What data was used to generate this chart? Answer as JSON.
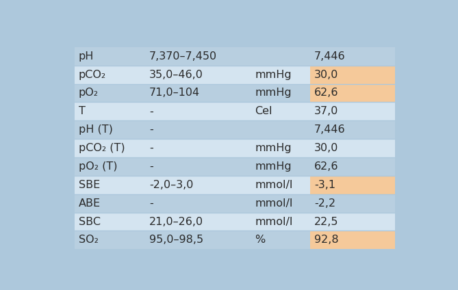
{
  "rows": [
    {
      "param": "pH",
      "ref": "7,370–7,450",
      "unit": "",
      "value": "7,446",
      "row_bg": "#b8cfe0",
      "val_bg": "#b8cfe0"
    },
    {
      "param": "pCO₂",
      "ref": "35,0–46,0",
      "unit": "mmHg",
      "value": "30,0",
      "row_bg": "#d4e4f0",
      "val_bg": "#f5c99a"
    },
    {
      "param": "pO₂",
      "ref": "71,0–104",
      "unit": "mmHg",
      "value": "62,6",
      "row_bg": "#b8cfe0",
      "val_bg": "#f5c99a"
    },
    {
      "param": "T",
      "ref": "-",
      "unit": "Cel",
      "value": "37,0",
      "row_bg": "#d4e4f0",
      "val_bg": "#d4e4f0"
    },
    {
      "param": "pH (T)",
      "ref": "-",
      "unit": "",
      "value": "7,446",
      "row_bg": "#b8cfe0",
      "val_bg": "#b8cfe0"
    },
    {
      "param": "pCO₂ (T)",
      "ref": "-",
      "unit": "mmHg",
      "value": "30,0",
      "row_bg": "#d4e4f0",
      "val_bg": "#d4e4f0"
    },
    {
      "param": "pO₂ (T)",
      "ref": "-",
      "unit": "mmHg",
      "value": "62,6",
      "row_bg": "#b8cfe0",
      "val_bg": "#b8cfe0"
    },
    {
      "param": "SBE",
      "ref": "-2,0–3,0",
      "unit": "mmol/l",
      "value": "-3,1",
      "row_bg": "#d4e4f0",
      "val_bg": "#f5c99a"
    },
    {
      "param": "ABE",
      "ref": "-",
      "unit": "mmol/l",
      "value": "-2,2",
      "row_bg": "#b8cfe0",
      "val_bg": "#b8cfe0"
    },
    {
      "param": "SBC",
      "ref": "21,0–26,0",
      "unit": "mmol/l",
      "value": "22,5",
      "row_bg": "#d4e4f0",
      "val_bg": "#d4e4f0"
    },
    {
      "param": "SO₂",
      "ref": "95,0–98,5",
      "unit": "%",
      "value": "92,8",
      "row_bg": "#b8cfe0",
      "val_bg": "#f5c99a"
    }
  ],
  "fig_bg": "#adc8dc",
  "font_size": 11.5,
  "text_color": "#2a2a2a"
}
